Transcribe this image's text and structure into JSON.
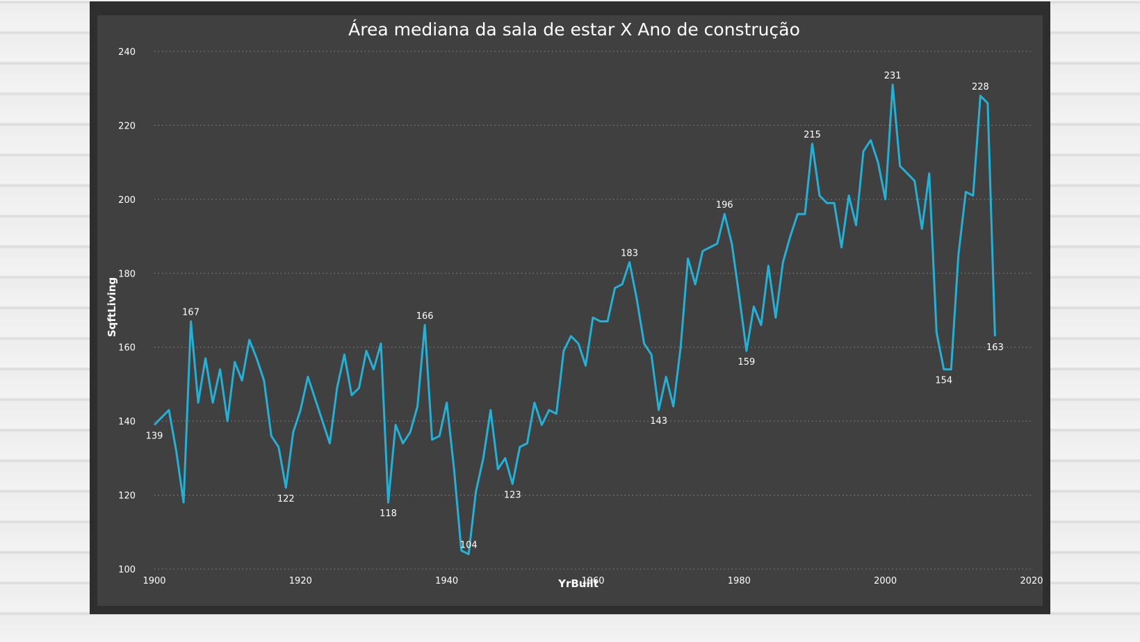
{
  "chart_data": {
    "type": "line",
    "title": "Área mediana da sala de estar X Ano de construção",
    "xlabel": "YrBuilt",
    "ylabel": "SqftLiving",
    "xlim": [
      1900,
      2020
    ],
    "ylim": [
      100,
      240
    ],
    "x_ticks": [
      1900,
      1920,
      1940,
      1960,
      1980,
      2000,
      2020
    ],
    "y_ticks": [
      100,
      120,
      140,
      160,
      180,
      200,
      220,
      240
    ],
    "grid": "horizontal-dotted",
    "line_color": "#22b2d8",
    "series": [
      {
        "x": [
          1900,
          1901,
          1902,
          1903,
          1904,
          1905,
          1906,
          1907,
          1908,
          1909,
          1910,
          1911,
          1912,
          1913,
          1914,
          1915,
          1916,
          1917,
          1918,
          1919,
          1920,
          1921,
          1922,
          1923,
          1924,
          1925,
          1926,
          1927,
          1928,
          1929,
          1930,
          1931,
          1932,
          1933,
          1934,
          1935,
          1936,
          1937,
          1938,
          1939,
          1940,
          1941,
          1942,
          1943,
          1944,
          1945,
          1946,
          1947,
          1948,
          1949,
          1950,
          1951,
          1952,
          1953,
          1954,
          1955,
          1956,
          1957,
          1958,
          1959,
          1960,
          1961,
          1962,
          1963,
          1964,
          1965,
          1966,
          1967,
          1968,
          1969,
          1970,
          1971,
          1972,
          1973,
          1974,
          1975,
          1976,
          1977,
          1978,
          1979,
          1980,
          1981,
          1982,
          1983,
          1984,
          1985,
          1986,
          1987,
          1988,
          1989,
          1990,
          1991,
          1992,
          1993,
          1994,
          1995,
          1996,
          1997,
          1998,
          1999,
          2000,
          2001,
          2002,
          2003,
          2004,
          2005,
          2006,
          2007,
          2008,
          2009,
          2010,
          2011,
          2012,
          2013,
          2014,
          2015
        ],
        "values": [
          139,
          141,
          143,
          132,
          118,
          167,
          145,
          157,
          145,
          154,
          140,
          156,
          151,
          162,
          157,
          151,
          136,
          133,
          122,
          137,
          143,
          152,
          146,
          140,
          134,
          149,
          158,
          147,
          149,
          159,
          154,
          161,
          118,
          139,
          134,
          137,
          144,
          166,
          135,
          136,
          145,
          127,
          105,
          104,
          121,
          130,
          143,
          127,
          130,
          123,
          133,
          134,
          145,
          139,
          143,
          142,
          159,
          163,
          161,
          155,
          168,
          167,
          167,
          176,
          177,
          183,
          173,
          161,
          158,
          143,
          152,
          144,
          160,
          184,
          177,
          186,
          187,
          188,
          196,
          188,
          174,
          159,
          171,
          166,
          182,
          168,
          183,
          190,
          196,
          196,
          215,
          201,
          199,
          199,
          187,
          201,
          193,
          213,
          216,
          210,
          200,
          231,
          209,
          207,
          205,
          192,
          207,
          164,
          154,
          154,
          185,
          202,
          201,
          228,
          226,
          163
        ]
      }
    ],
    "data_labels": [
      {
        "x": 1900,
        "text": "139",
        "pos": "below"
      },
      {
        "x": 1905,
        "text": "167",
        "pos": "above"
      },
      {
        "x": 1918,
        "text": "122",
        "pos": "below"
      },
      {
        "x": 1932,
        "text": "118",
        "pos": "below"
      },
      {
        "x": 1937,
        "text": "166",
        "pos": "above"
      },
      {
        "x": 1943,
        "text": "104",
        "pos": "above"
      },
      {
        "x": 1949,
        "text": "123",
        "pos": "below"
      },
      {
        "x": 1965,
        "text": "183",
        "pos": "above"
      },
      {
        "x": 1969,
        "text": "143",
        "pos": "below"
      },
      {
        "x": 1978,
        "text": "196",
        "pos": "above"
      },
      {
        "x": 1981,
        "text": "159",
        "pos": "below"
      },
      {
        "x": 1990,
        "text": "215",
        "pos": "above"
      },
      {
        "x": 2001,
        "text": "231",
        "pos": "above"
      },
      {
        "x": 2008,
        "text": "154",
        "pos": "below"
      },
      {
        "x": 2013,
        "text": "228",
        "pos": "above"
      },
      {
        "x": 2015,
        "text": "163",
        "pos": "below"
      }
    ]
  }
}
